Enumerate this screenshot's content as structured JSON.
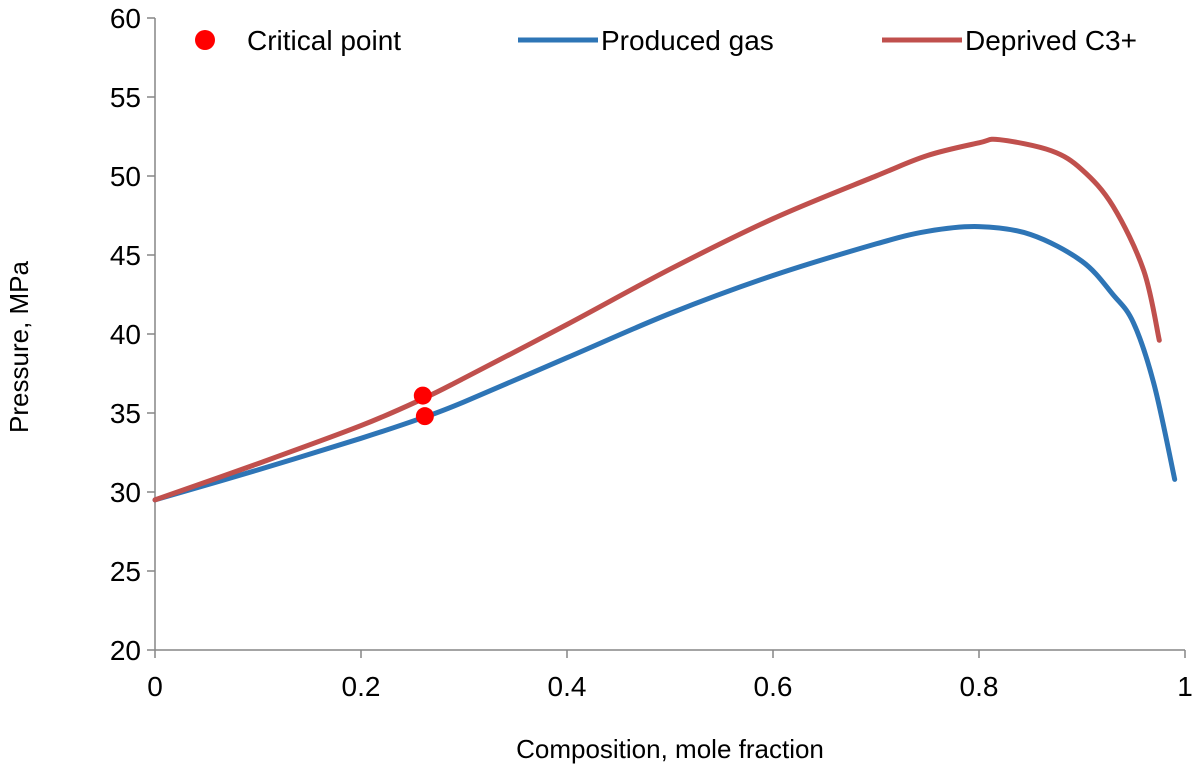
{
  "chart_data": {
    "type": "line",
    "xlabel": "Composition, mole fraction",
    "ylabel": "Pressure,  MPa",
    "xlim": [
      0,
      1
    ],
    "ylim": [
      20,
      60
    ],
    "x_ticks": [
      "0",
      "0.2",
      "0.4",
      "0.6",
      "0.8",
      "1"
    ],
    "y_ticks": [
      "20",
      "25",
      "30",
      "35",
      "40",
      "45",
      "50",
      "55",
      "60"
    ],
    "grid": false,
    "legend_position": "top",
    "series": [
      {
        "name": "Produced gas",
        "color": "#2e75b6",
        "points": [
          [
            0,
            29.5
          ],
          [
            0.1,
            31.4
          ],
          [
            0.2,
            33.4
          ],
          [
            0.26,
            34.7
          ],
          [
            0.3,
            35.7
          ],
          [
            0.4,
            38.5
          ],
          [
            0.5,
            41.3
          ],
          [
            0.6,
            43.7
          ],
          [
            0.7,
            45.7
          ],
          [
            0.75,
            46.5
          ],
          [
            0.8,
            46.8
          ],
          [
            0.85,
            46.3
          ],
          [
            0.9,
            44.6
          ],
          [
            0.93,
            42.5
          ],
          [
            0.95,
            40.7
          ],
          [
            0.97,
            36.8
          ],
          [
            0.99,
            30.8
          ]
        ]
      },
      {
        "name": "Deprived C3+",
        "color": "#c0504d",
        "points": [
          [
            0,
            29.5
          ],
          [
            0.1,
            31.8
          ],
          [
            0.2,
            34.2
          ],
          [
            0.26,
            35.9
          ],
          [
            0.3,
            37.2
          ],
          [
            0.4,
            40.6
          ],
          [
            0.5,
            44.1
          ],
          [
            0.6,
            47.3
          ],
          [
            0.7,
            50.0
          ],
          [
            0.75,
            51.3
          ],
          [
            0.8,
            52.1
          ],
          [
            0.82,
            52.3
          ],
          [
            0.87,
            51.6
          ],
          [
            0.9,
            50.4
          ],
          [
            0.93,
            48.1
          ],
          [
            0.96,
            44.0
          ],
          [
            0.975,
            39.6
          ]
        ]
      }
    ],
    "markers": {
      "name": "Critical point",
      "color": "#ff0000",
      "points": [
        [
          0.26,
          36.1
        ],
        [
          0.262,
          34.8
        ]
      ]
    }
  }
}
